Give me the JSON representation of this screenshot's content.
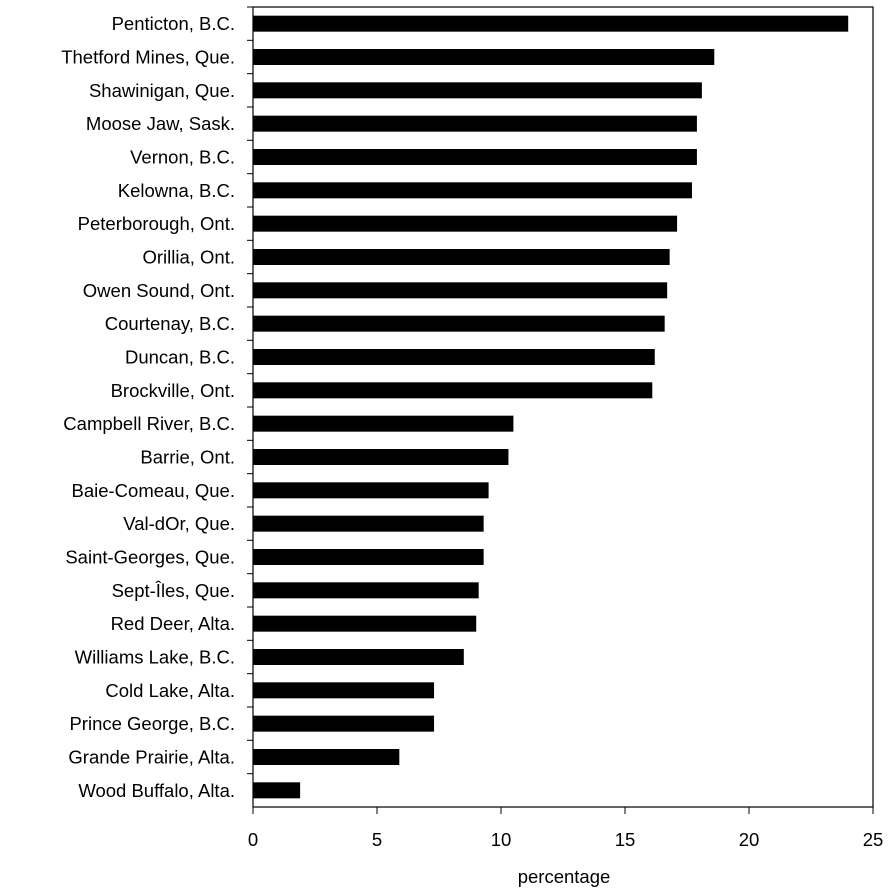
{
  "chart_data": {
    "type": "bar",
    "orientation": "horizontal",
    "title": "",
    "xlabel": "percentage",
    "ylabel": "",
    "xlim": [
      0,
      25
    ],
    "xticks": [
      0,
      5,
      10,
      15,
      20,
      25
    ],
    "grid": false,
    "legend": "none",
    "bar_color": "#000000",
    "categories": [
      "Penticton, B.C.",
      "Thetford Mines, Que.",
      "Shawinigan, Que.",
      "Moose Jaw, Sask.",
      "Vernon, B.C.",
      "Kelowna, B.C.",
      "Peterborough, Ont.",
      "Orillia, Ont.",
      "Owen Sound, Ont.",
      "Courtenay, B.C.",
      "Duncan, B.C.",
      "Brockville, Ont.",
      "Campbell River, B.C.",
      "Barrie, Ont.",
      "Baie-Comeau, Que.",
      "Val-dOr, Que.",
      "Saint-Georges, Que.",
      "Sept-Îles, Que.",
      "Red Deer, Alta.",
      "Williams Lake, B.C.",
      "Cold Lake, Alta.",
      "Prince George, B.C.",
      "Grande Prairie, Alta.",
      "Wood Buffalo, Alta."
    ],
    "values": [
      24.0,
      18.6,
      18.1,
      17.9,
      17.9,
      17.7,
      17.1,
      16.8,
      16.7,
      16.6,
      16.2,
      16.1,
      10.5,
      10.3,
      9.5,
      9.3,
      9.3,
      9.1,
      9.0,
      8.5,
      7.3,
      7.3,
      5.9,
      1.9
    ]
  }
}
